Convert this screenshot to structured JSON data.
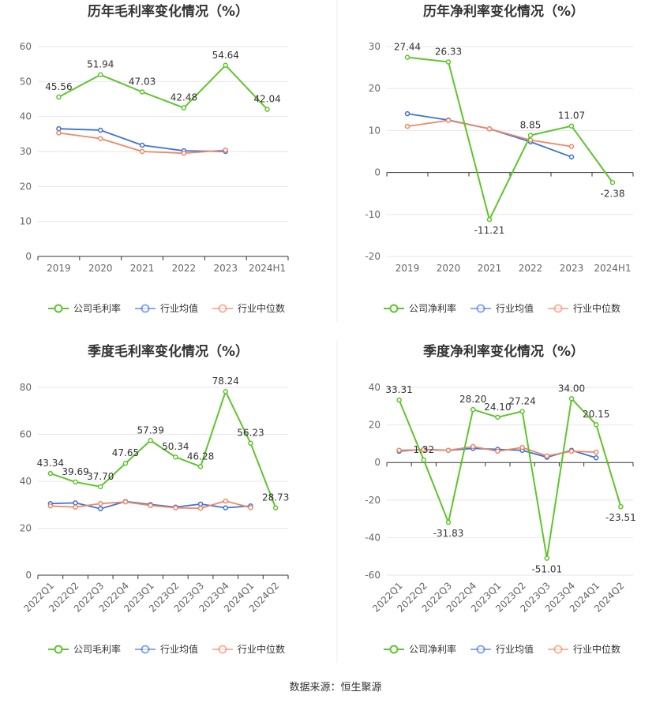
{
  "colors": {
    "company": "#5ec52c",
    "industry_avg": "#3d72d9",
    "industry_median": "#f08763",
    "grid": "#e6e6ee",
    "axis": "#333333",
    "divider": "#eeeeee"
  },
  "legend_labels": {
    "gross": [
      "公司毛利率",
      "行业均值",
      "行业中位数"
    ],
    "net": [
      "公司净利率",
      "行业均值",
      "行业中位数"
    ]
  },
  "source": "数据来源：恒生聚源",
  "chart_data": [
    {
      "type": "line",
      "title": "历年毛利率变化情况（%）",
      "categories": [
        "2019",
        "2020",
        "2021",
        "2022",
        "2023",
        "2024H1"
      ],
      "ylim": [
        0,
        60
      ],
      "yticks": [
        0,
        10,
        20,
        30,
        40,
        50,
        60
      ],
      "grid": true,
      "legend_position": "bottom",
      "series": [
        {
          "name": "公司毛利率",
          "color_key": "company",
          "labeled": true,
          "values": [
            45.56,
            51.94,
            47.03,
            42.48,
            54.64,
            42.04
          ],
          "labels": [
            "45.56",
            "51.94",
            "47.03",
            "42.48",
            "54.64",
            "42.04"
          ]
        },
        {
          "name": "行业均值",
          "color_key": "industry_avg",
          "values": [
            36.5,
            36.1,
            31.8,
            30.2,
            30.0,
            null
          ]
        },
        {
          "name": "行业中位数",
          "color_key": "industry_median",
          "values": [
            35.3,
            33.7,
            30.0,
            29.5,
            30.4,
            null
          ]
        }
      ]
    },
    {
      "type": "line",
      "title": "历年净利率变化情况（%）",
      "categories": [
        "2019",
        "2020",
        "2021",
        "2022",
        "2023",
        "2024H1"
      ],
      "ylim": [
        -20,
        30
      ],
      "yticks": [
        -20,
        -10,
        0,
        10,
        20,
        30
      ],
      "grid": true,
      "legend_position": "bottom",
      "series": [
        {
          "name": "公司净利率",
          "color_key": "company",
          "labeled": true,
          "values": [
            27.44,
            26.33,
            -11.21,
            8.85,
            11.07,
            -2.38
          ],
          "labels": [
            "27.44",
            "26.33",
            "-11.21",
            "8.85",
            "11.07",
            "-2.38"
          ]
        },
        {
          "name": "行业均值",
          "color_key": "industry_avg",
          "values": [
            14.0,
            12.5,
            10.4,
            7.3,
            3.7,
            null
          ]
        },
        {
          "name": "行业中位数",
          "color_key": "industry_median",
          "values": [
            11.0,
            12.4,
            10.4,
            7.7,
            6.2,
            null
          ]
        }
      ]
    },
    {
      "type": "line",
      "title": "季度毛利率变化情况（%）",
      "categories": [
        "2022Q1",
        "2022Q2",
        "2022Q3",
        "2022Q4",
        "2023Q1",
        "2023Q2",
        "2023Q3",
        "2023Q4",
        "2024Q1",
        "2024Q2"
      ],
      "ylim": [
        0,
        80
      ],
      "yticks": [
        0,
        20,
        40,
        60,
        80
      ],
      "grid": true,
      "legend_position": "bottom",
      "series": [
        {
          "name": "公司毛利率",
          "color_key": "company",
          "labeled": true,
          "values": [
            43.34,
            39.69,
            37.7,
            47.65,
            57.39,
            50.34,
            46.28,
            78.24,
            56.23,
            28.73
          ],
          "labels": [
            "43.34",
            "39.69",
            "37.70",
            "47.65",
            "57.39",
            "50.34",
            "46.28",
            "78.24",
            "56.23",
            "28.73"
          ]
        },
        {
          "name": "行业均值",
          "color_key": "industry_avg",
          "values": [
            30.5,
            30.8,
            28.3,
            31.4,
            30.1,
            29.0,
            30.3,
            28.7,
            29.5,
            null
          ]
        },
        {
          "name": "行业中位数",
          "color_key": "industry_median",
          "values": [
            29.5,
            29.0,
            30.5,
            31.2,
            29.7,
            28.7,
            28.5,
            31.6,
            28.8,
            null
          ]
        }
      ]
    },
    {
      "type": "line",
      "title": "季度净利率变化情况（%）",
      "categories": [
        "2022Q1",
        "2022Q2",
        "2022Q3",
        "2022Q4",
        "2023Q1",
        "2023Q2",
        "2023Q3",
        "2023Q4",
        "2024Q1",
        "2024Q2"
      ],
      "ylim": [
        -60,
        40
      ],
      "yticks": [
        -60,
        -40,
        -20,
        0,
        20,
        40
      ],
      "grid": true,
      "legend_position": "bottom",
      "series": [
        {
          "name": "公司净利率",
          "color_key": "company",
          "labeled": true,
          "values": [
            33.31,
            1.32,
            -31.83,
            28.2,
            24.1,
            27.24,
            -51.01,
            34.0,
            20.15,
            -23.51
          ],
          "labels": [
            "33.31",
            "1.32",
            "-31.83",
            "28.20",
            "24.10",
            "27.24",
            "-51.01",
            "34.00",
            "20.15",
            "-23.51"
          ]
        },
        {
          "name": "行业均值",
          "color_key": "industry_avg",
          "values": [
            6.0,
            7.0,
            6.5,
            7.5,
            7.0,
            6.5,
            2.8,
            6.5,
            2.5,
            null
          ]
        },
        {
          "name": "行业中位数",
          "color_key": "industry_median",
          "values": [
            6.5,
            6.8,
            6.5,
            8.5,
            6.0,
            8.0,
            3.5,
            6.0,
            5.5,
            null
          ]
        }
      ]
    }
  ]
}
